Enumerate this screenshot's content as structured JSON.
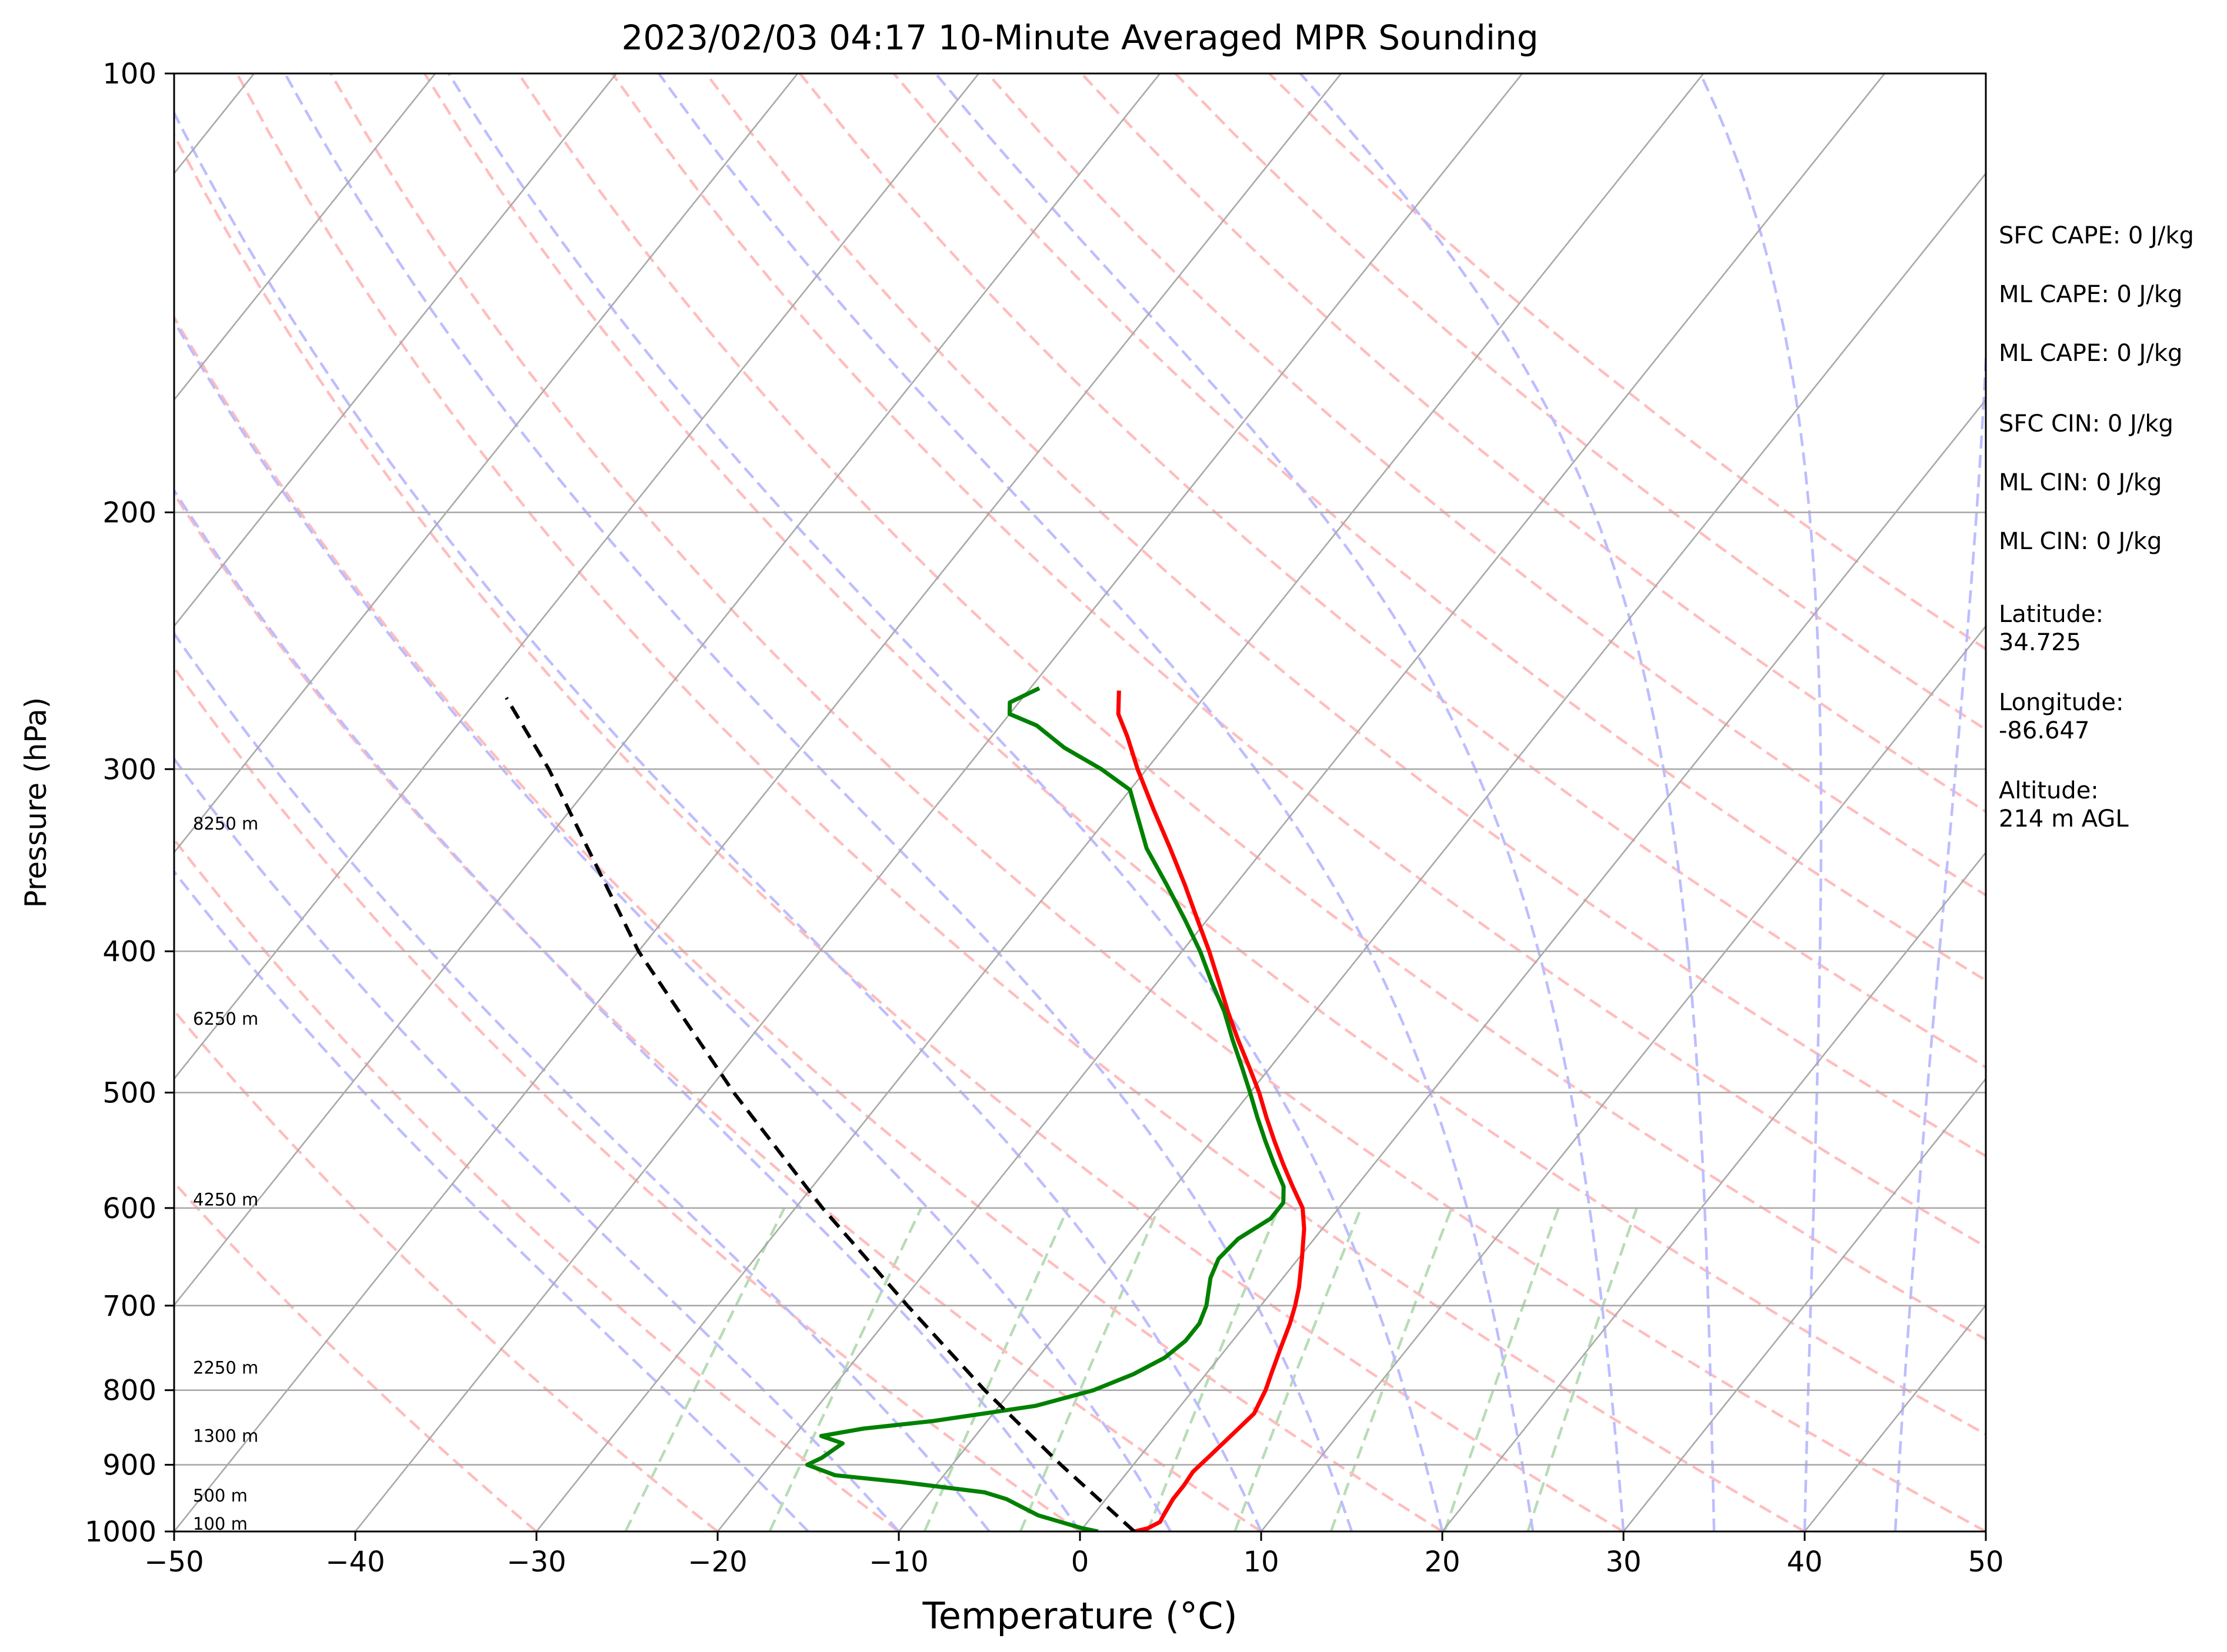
{
  "chart_data": {
    "type": "line",
    "title": "2023/02/03 04:17 10-Minute Averaged MPR Sounding",
    "xlabel": "Temperature (°C)",
    "ylabel": "Pressure (hPa)",
    "x_scale": "linear",
    "y_scale": "log (inverted)",
    "xlim": [
      -50,
      50
    ],
    "ylim": [
      1000,
      100
    ],
    "x_ticks": [
      -50,
      -40,
      -30,
      -20,
      -10,
      0,
      10,
      20,
      30,
      40,
      50
    ],
    "x_tick_labels": [
      "−50",
      "−40",
      "−30",
      "−20",
      "−10",
      "0",
      "10",
      "20",
      "30",
      "40",
      "50"
    ],
    "y_ticks": [
      100,
      200,
      300,
      400,
      500,
      600,
      700,
      800,
      900,
      1000
    ],
    "y_tick_labels": [
      "100",
      "200",
      "300",
      "400",
      "500",
      "600",
      "700",
      "800",
      "900",
      "1000"
    ],
    "horizontal_grid": true,
    "skew_isotherm_spacing_c": 10,
    "dry_adiabats_theta_c": [
      -30,
      -20,
      -10,
      0,
      10,
      20,
      30,
      40,
      50,
      60,
      70,
      80,
      90,
      100,
      110,
      120,
      130,
      140,
      150
    ],
    "moist_adiabats_surface_c": [
      -15,
      -10,
      -5,
      0,
      5,
      10,
      15,
      20,
      25,
      30,
      35,
      40,
      45
    ],
    "mixing_ratio_lines_gkg": [
      0.5,
      1,
      2,
      3,
      5,
      7,
      10,
      15,
      20
    ],
    "height_labels": [
      {
        "label": "100 m",
        "pressure": 988
      },
      {
        "label": "500 m",
        "pressure": 945
      },
      {
        "label": "1300 m",
        "pressure": 860
      },
      {
        "label": "2250 m",
        "pressure": 772
      },
      {
        "label": "4250 m",
        "pressure": 592
      },
      {
        "label": "6250 m",
        "pressure": 445
      },
      {
        "label": "8250 m",
        "pressure": 327
      }
    ],
    "series": [
      {
        "color": "#ff0000",
        "points": [
          [
            1000,
            3.0
          ],
          [
            995,
            3.6
          ],
          [
            985,
            4.0
          ],
          [
            975,
            3.9
          ],
          [
            950,
            3.7
          ],
          [
            930,
            3.7
          ],
          [
            910,
            3.6
          ],
          [
            890,
            3.8
          ],
          [
            870,
            4.0
          ],
          [
            850,
            4.2
          ],
          [
            830,
            4.4
          ],
          [
            815,
            4.2
          ],
          [
            800,
            4.0
          ],
          [
            780,
            3.6
          ],
          [
            750,
            3.0
          ],
          [
            720,
            2.4
          ],
          [
            700,
            1.9
          ],
          [
            680,
            1.3
          ],
          [
            650,
            0.2
          ],
          [
            620,
            -1.0
          ],
          [
            600,
            -2.0
          ],
          [
            580,
            -3.5
          ],
          [
            560,
            -5.0
          ],
          [
            540,
            -6.5
          ],
          [
            520,
            -8.0
          ],
          [
            500,
            -9.5
          ],
          [
            480,
            -11.2
          ],
          [
            460,
            -13.0
          ],
          [
            440,
            -14.8
          ],
          [
            420,
            -16.6
          ],
          [
            400,
            -18.5
          ],
          [
            380,
            -20.6
          ],
          [
            360,
            -22.8
          ],
          [
            340,
            -25.2
          ],
          [
            320,
            -27.8
          ],
          [
            300,
            -30.5
          ],
          [
            285,
            -32.5
          ],
          [
            275,
            -34.0
          ],
          [
            265,
            -35.0
          ]
        ]
      },
      {
        "color": "#008000",
        "points": [
          [
            1000,
            1.0
          ],
          [
            995,
            0.0
          ],
          [
            985,
            -1.5
          ],
          [
            975,
            -3.0
          ],
          [
            960,
            -4.5
          ],
          [
            950,
            -5.5
          ],
          [
            940,
            -7.0
          ],
          [
            925,
            -12.0
          ],
          [
            915,
            -16.0
          ],
          [
            900,
            -18.0
          ],
          [
            890,
            -17.5
          ],
          [
            870,
            -17.0
          ],
          [
            860,
            -18.5
          ],
          [
            850,
            -16.5
          ],
          [
            840,
            -13.0
          ],
          [
            820,
            -8.0
          ],
          [
            800,
            -5.5
          ],
          [
            780,
            -4.0
          ],
          [
            760,
            -3.0
          ],
          [
            740,
            -2.6
          ],
          [
            720,
            -2.6
          ],
          [
            700,
            -3.0
          ],
          [
            670,
            -4.0
          ],
          [
            650,
            -4.4
          ],
          [
            630,
            -4.2
          ],
          [
            610,
            -3.3
          ],
          [
            595,
            -3.3
          ],
          [
            580,
            -4.0
          ],
          [
            560,
            -5.5
          ],
          [
            540,
            -7.0
          ],
          [
            520,
            -8.5
          ],
          [
            500,
            -10.0
          ],
          [
            480,
            -11.6
          ],
          [
            460,
            -13.3
          ],
          [
            440,
            -15.0
          ],
          [
            420,
            -17.0
          ],
          [
            400,
            -19.0
          ],
          [
            380,
            -21.3
          ],
          [
            360,
            -23.8
          ],
          [
            340,
            -26.5
          ],
          [
            320,
            -28.8
          ],
          [
            310,
            -30.0
          ],
          [
            300,
            -32.5
          ],
          [
            290,
            -35.5
          ],
          [
            280,
            -38.0
          ],
          [
            275,
            -40.0
          ],
          [
            270,
            -40.5
          ],
          [
            264,
            -39.5
          ]
        ]
      },
      {
        "color": "#000000",
        "points": [
          [
            1000,
            3.0
          ],
          [
            900,
            -4.0
          ],
          [
            800,
            -11.5
          ],
          [
            700,
            -19.5
          ],
          [
            600,
            -28.5
          ],
          [
            500,
            -38.5
          ],
          [
            400,
            -50.0
          ],
          [
            300,
            -63.0
          ],
          [
            268,
            -68.5
          ]
        ]
      }
    ],
    "info_panel": [
      "SFC CAPE: 0 J/kg",
      "ML CAPE: 0 J/kg",
      "ML CAPE: 0 J/kg",
      "SFC CIN: 0 J/kg",
      "ML CIN: 0 J/kg",
      "ML CIN: 0 J/kg",
      "Latitude:",
      "34.725",
      "Longitude:",
      "-86.647",
      "Altitude:",
      "214 m AGL"
    ],
    "colors": {
      "temperature": "#ff0000",
      "dewpoint": "#008000",
      "parcel": "#000000",
      "isotherm": "#a9a9a9",
      "dry_adiabat": "#ffbdbd",
      "moist_adiabat": "#bdbdff",
      "mixing_ratio": "#b7dcb7",
      "grid": "#a9a9a9"
    }
  }
}
